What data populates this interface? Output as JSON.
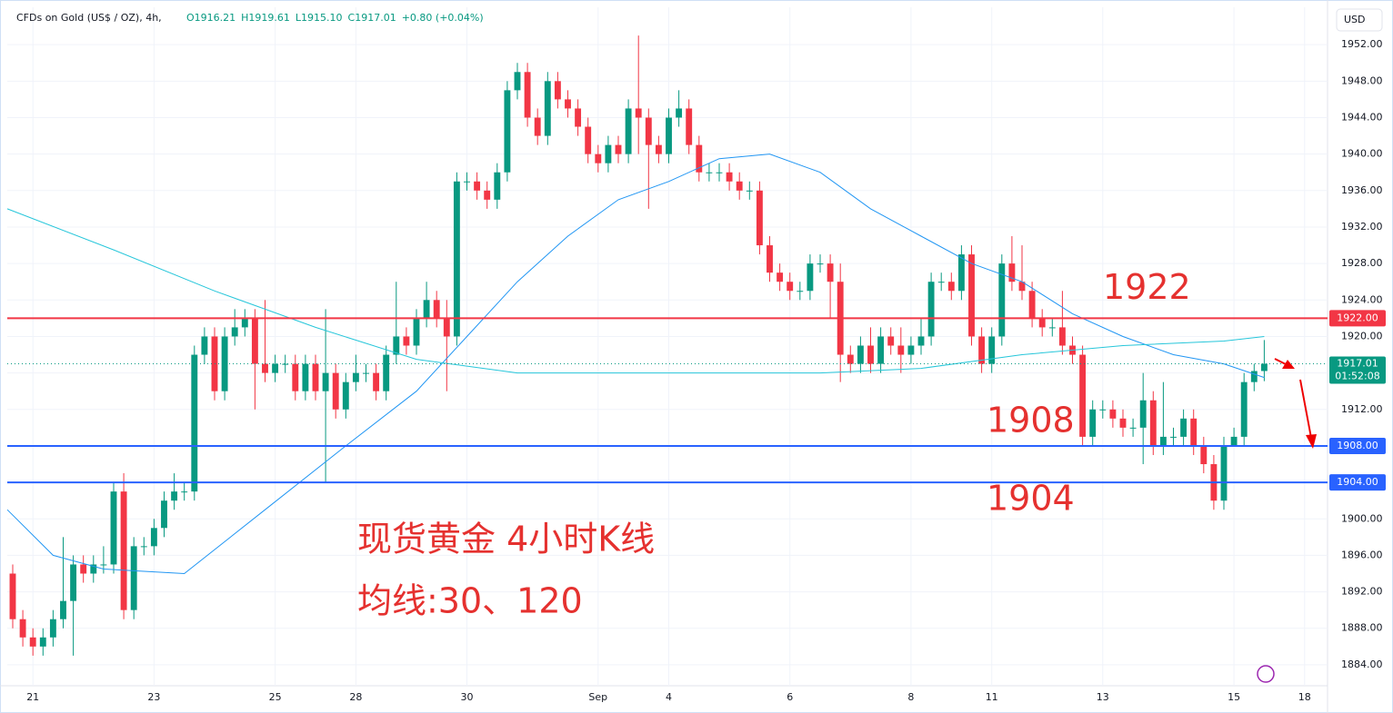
{
  "chart_data": {
    "type": "candlestick",
    "title": "CFDs on Gold (US$ / OZ), 4h,",
    "header_values": [
      "O1916.21",
      "H1919.61",
      "L1915.10",
      "C1917.01",
      "+0.80 (+0.04%)"
    ],
    "currency": "USD",
    "up_color": "#089981",
    "down_color": "#f23645",
    "open": [
      1894,
      1889,
      1887,
      1886,
      1887,
      1889,
      1891,
      1895,
      1894,
      1895,
      1895,
      1903,
      1890,
      1897,
      1897,
      1899,
      1902,
      1903,
      1903,
      1918,
      1920,
      1914,
      1920,
      1921,
      1922,
      1917,
      1916,
      1917,
      1917,
      1914,
      1917,
      1914,
      1916,
      1912,
      1915,
      1916,
      1916,
      1914,
      1918,
      1920,
      1919,
      1922,
      1924,
      1922,
      1920,
      1937,
      1937,
      1936,
      1935,
      1938,
      1947,
      1949,
      1944,
      1942,
      1948,
      1946,
      1945,
      1943,
      1940,
      1939,
      1941,
      1940,
      1945,
      1944,
      1941,
      1940,
      1944,
      1945,
      1941,
      1938,
      1938,
      1938,
      1937,
      1936,
      1936,
      1930,
      1927,
      1926,
      1925,
      1925,
      1928,
      1928,
      1926,
      1918,
      1917,
      1919,
      1917,
      1920,
      1919,
      1918,
      1919,
      1920,
      1926,
      1926,
      1925,
      1929,
      1920,
      1917,
      1920,
      1928,
      1926,
      1925,
      1922,
      1921,
      1921,
      1919,
      1918,
      1909,
      1912,
      1912,
      1911,
      1910,
      1910,
      1913,
      1908,
      1909,
      1909,
      1911,
      1908,
      1906,
      1902,
      1908,
      1909,
      1915,
      1916.21
    ],
    "high": [
      1895,
      1890,
      1888,
      1888,
      1890,
      1898,
      1896,
      1896,
      1896,
      1897,
      1904,
      1905,
      1898,
      1898,
      1900,
      1903,
      1905,
      1904,
      1919,
      1921,
      1921,
      1921,
      1923,
      1923,
      1923,
      1924,
      1918,
      1918,
      1918,
      1918,
      1918,
      1923,
      1917,
      1916,
      1918,
      1917,
      1917,
      1919,
      1926,
      1921,
      1923,
      1926,
      1925,
      1924,
      1938,
      1938,
      1938,
      1937,
      1939,
      1948,
      1950,
      1950,
      1945,
      1949,
      1949,
      1947,
      1946,
      1944,
      1941,
      1942,
      1942,
      1946,
      1953,
      1945,
      1942,
      1945,
      1947,
      1946,
      1942,
      1939,
      1939,
      1939,
      1938,
      1937,
      1937,
      1931,
      1928,
      1927,
      1926,
      1929,
      1929,
      1929,
      1928,
      1919,
      1920,
      1921,
      1921,
      1921,
      1921,
      1920,
      1922,
      1927,
      1927,
      1927,
      1930,
      1930,
      1921,
      1921,
      1929,
      1931,
      1930,
      1926,
      1923,
      1922,
      1925,
      1920,
      1919,
      1913,
      1913,
      1913,
      1912,
      1911,
      1916,
      1914,
      1915,
      1910,
      1912,
      1912,
      1909,
      1907,
      1909,
      1910,
      1916,
      1917,
      1919.61
    ],
    "low": [
      1888,
      1886,
      1885,
      1885,
      1886,
      1888,
      1885,
      1893,
      1893,
      1894,
      1894,
      1889,
      1889,
      1896,
      1896,
      1898,
      1901,
      1902,
      1902,
      1917,
      1913,
      1913,
      1919,
      1920,
      1912,
      1915,
      1915,
      1916,
      1913,
      1913,
      1913,
      1904,
      1911,
      1911,
      1914,
      1915,
      1913,
      1913,
      1917,
      1918,
      1918,
      1921,
      1921,
      1914,
      1919,
      1936,
      1935,
      1934,
      1934,
      1937,
      1946,
      1943,
      1941,
      1941,
      1945,
      1944,
      1942,
      1939,
      1938,
      1938,
      1939,
      1939,
      1940,
      1934,
      1939,
      1939,
      1943,
      1940,
      1937,
      1937,
      1937,
      1936,
      1935,
      1935,
      1929,
      1926,
      1925,
      1924,
      1924,
      1924,
      1927,
      1922,
      1915,
      1916,
      1916,
      1916,
      1916,
      1918,
      1916,
      1917,
      1918,
      1919,
      1925,
      1924,
      1924,
      1919,
      1916,
      1916,
      1919,
      1925,
      1924,
      1921,
      1920,
      1920,
      1918,
      1917,
      1908,
      1908,
      1911,
      1910,
      1909,
      1909,
      1906,
      1907,
      1907,
      1908,
      1908,
      1907,
      1905,
      1901,
      1901,
      1908,
      1908,
      1914,
      1915.1
    ],
    "close": [
      1889,
      1887,
      1886,
      1887,
      1889,
      1891,
      1895,
      1894,
      1895,
      1895,
      1903,
      1890,
      1897,
      1897,
      1899,
      1902,
      1903,
      1903,
      1918,
      1920,
      1914,
      1920,
      1921,
      1922,
      1917,
      1916,
      1917,
      1917,
      1914,
      1917,
      1914,
      1916,
      1912,
      1915,
      1916,
      1916,
      1914,
      1918,
      1920,
      1919,
      1922,
      1924,
      1922,
      1920,
      1937,
      1937,
      1936,
      1935,
      1938,
      1947,
      1949,
      1944,
      1942,
      1948,
      1946,
      1945,
      1943,
      1940,
      1939,
      1941,
      1940,
      1945,
      1944,
      1941,
      1940,
      1944,
      1945,
      1941,
      1938,
      1938,
      1938,
      1937,
      1936,
      1936,
      1930,
      1927,
      1926,
      1925,
      1925,
      1928,
      1928,
      1926,
      1918,
      1917,
      1919,
      1917,
      1920,
      1919,
      1918,
      1919,
      1920,
      1926,
      1926,
      1925,
      1929,
      1920,
      1917,
      1920,
      1928,
      1926,
      1925,
      1922,
      1921,
      1921,
      1919,
      1918,
      1909,
      1912,
      1912,
      1911,
      1910,
      1910,
      1913,
      1908,
      1909,
      1909,
      1911,
      1908,
      1906,
      1902,
      1908,
      1909,
      1915,
      1916.21,
      1917.01
    ],
    "xlim": [
      -0.54,
      130.27
    ],
    "xticks": [
      {
        "value": 2,
        "label": "21"
      },
      {
        "value": 14,
        "label": "23"
      },
      {
        "value": 26,
        "label": "25"
      },
      {
        "value": 34,
        "label": "28"
      },
      {
        "value": 45,
        "label": "30"
      },
      {
        "value": 58,
        "label": "Sep"
      },
      {
        "value": 65,
        "label": "4"
      },
      {
        "value": 77,
        "label": "6"
      },
      {
        "value": 89,
        "label": "8"
      },
      {
        "value": 97,
        "label": "11"
      },
      {
        "value": 108,
        "label": "13"
      },
      {
        "value": 121,
        "label": "15"
      },
      {
        "value": 128,
        "label": "18"
      }
    ],
    "ylim": [
      1881.7,
      1956.1
    ],
    "yticks": [
      {
        "value": 1884,
        "label": "1884.00"
      },
      {
        "value": 1888,
        "label": "1888.00"
      },
      {
        "value": 1892,
        "label": "1892.00"
      },
      {
        "value": 1896,
        "label": "1896.00"
      },
      {
        "value": 1900,
        "label": "1900.00"
      },
      {
        "value": 1904,
        "label": "1904.00"
      },
      {
        "value": 1908,
        "label": "1908.00"
      },
      {
        "value": 1912,
        "label": "1912.00"
      },
      {
        "value": 1916,
        "label": "1916.00"
      },
      {
        "value": 1920,
        "label": "1920.00"
      },
      {
        "value": 1924,
        "label": "1924.00"
      },
      {
        "value": 1928,
        "label": "1928.00"
      },
      {
        "value": 1932,
        "label": "1932.00"
      },
      {
        "value": 1936,
        "label": "1936.00"
      },
      {
        "value": 1940,
        "label": "1940.00"
      },
      {
        "value": 1944,
        "label": "1944.00"
      },
      {
        "value": 1948,
        "label": "1948.00"
      },
      {
        "value": 1952,
        "label": "1952.00"
      }
    ],
    "grid": true,
    "series": [
      {
        "type": "line",
        "color": "#2196f3",
        "x": [
          -0.54,
          4,
          9,
          17,
          25,
          33,
          40,
          45,
          50,
          55,
          60,
          65,
          70,
          75,
          80,
          85,
          90,
          95,
          100,
          105,
          110,
          115,
          120,
          124
        ],
        "values": [
          1901,
          1896,
          1894.5,
          1894,
          1901,
          1908,
          1914,
          1920,
          1926,
          1931,
          1935,
          1937,
          1939.5,
          1940,
          1938,
          1934,
          1931,
          1928,
          1926,
          1922.5,
          1920,
          1918,
          1917,
          1915.5
        ]
      },
      {
        "type": "line",
        "color": "#26c6da",
        "x": [
          -0.54,
          10,
          20,
          30,
          40,
          50,
          60,
          70,
          80,
          90,
          100,
          110,
          120,
          124
        ],
        "values": [
          1934,
          1929.5,
          1925,
          1921,
          1917.5,
          1916,
          1916,
          1916,
          1916,
          1916.5,
          1918,
          1919,
          1919.5,
          1920
        ]
      }
    ],
    "horizontal_lines": [
      {
        "value": 1922,
        "label": "1922.00",
        "color": "#f23645",
        "annotation": "1922"
      },
      {
        "value": 1908,
        "label": "1908.00",
        "color": "#2962ff",
        "annotation": "1908"
      },
      {
        "value": 1904,
        "label": "1904.00",
        "color": "#2962ff",
        "annotation": "1904"
      }
    ],
    "last_price": {
      "value": 1917.01,
      "label": "1917.01",
      "countdown": "01:52:08"
    },
    "annotations": [
      "现货黄金 4小时K线",
      "均线:30、120"
    ]
  }
}
